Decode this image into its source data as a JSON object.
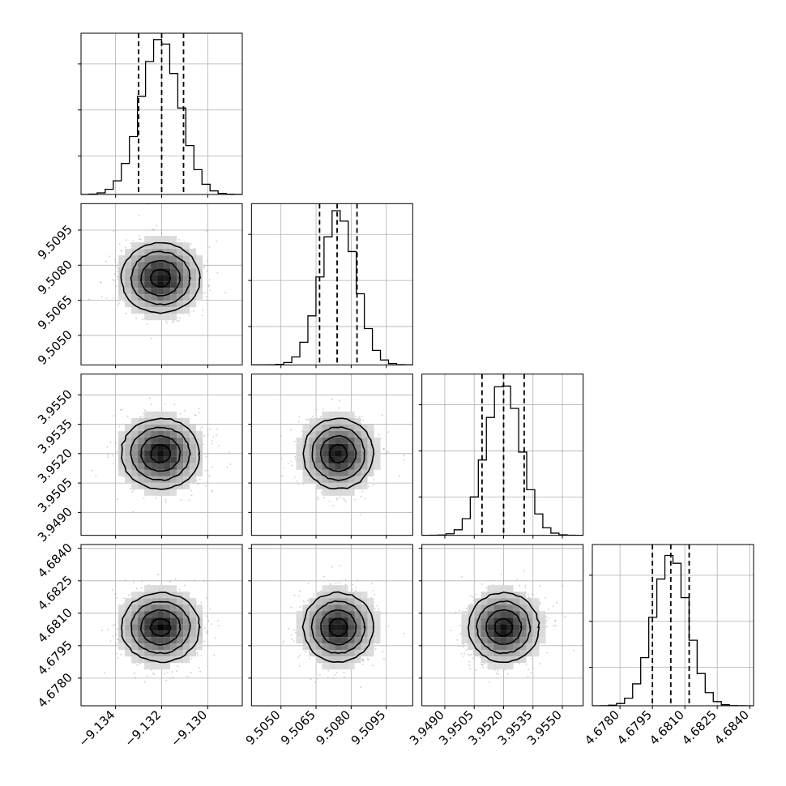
{
  "chart_data": {
    "type": "corner",
    "parameters": [
      {
        "range": [
          -9.1355,
          -9.1285
        ],
        "ticks": [
          -9.134,
          -9.132,
          -9.13
        ],
        "tick_labels": [
          "−9.134",
          "−9.132",
          "−9.130"
        ],
        "center": -9.13205,
        "sigma": 0.00085,
        "quantiles": [
          -9.133,
          -9.132,
          -9.13105
        ],
        "hist_ymax": 1.05
      },
      {
        "range": [
          9.50374,
          9.51063
        ],
        "ticks": [
          9.505,
          9.5065,
          9.508,
          9.5095
        ],
        "tick_labels": [
          "9.5050",
          "9.5065",
          "9.5080",
          "9.5095"
        ],
        "center": 9.50745,
        "sigma": 0.00075,
        "quantiles": [
          9.50665,
          9.5074,
          9.50825
        ],
        "hist_ymax": 1.05
      },
      {
        "range": [
          3.94783,
          3.95606
        ],
        "ticks": [
          3.949,
          3.9505,
          3.952,
          3.9535,
          3.955
        ],
        "tick_labels": [
          "3.9490",
          "3.9505",
          "3.9520",
          "3.9535",
          "3.9550"
        ],
        "center": 3.952,
        "sigma": 0.0009,
        "quantiles": [
          3.9509,
          3.952,
          3.95305
        ],
        "hist_ymax": 1.05
      },
      {
        "range": [
          4.67672,
          4.68418
        ],
        "ticks": [
          4.678,
          4.6795,
          4.681,
          4.6825,
          4.684
        ],
        "tick_labels": [
          "4.6780",
          "4.6795",
          "4.6810",
          "4.6825",
          "4.6840"
        ],
        "center": 4.68035,
        "sigma": 0.0008,
        "quantiles": [
          4.6795,
          4.68035,
          4.6812
        ],
        "hist_ymax": 1.05
      }
    ],
    "histograms": {
      "bins": 20,
      "line_style": "step",
      "quantile_line_style": "dashed"
    },
    "contour_levels_sigma": [
      0.5,
      1.0,
      1.5,
      2.0
    ],
    "grid": true,
    "colors": {
      "line": "#000000",
      "grid": "#b0b0b0",
      "scatter": "#8c8c8c"
    }
  }
}
